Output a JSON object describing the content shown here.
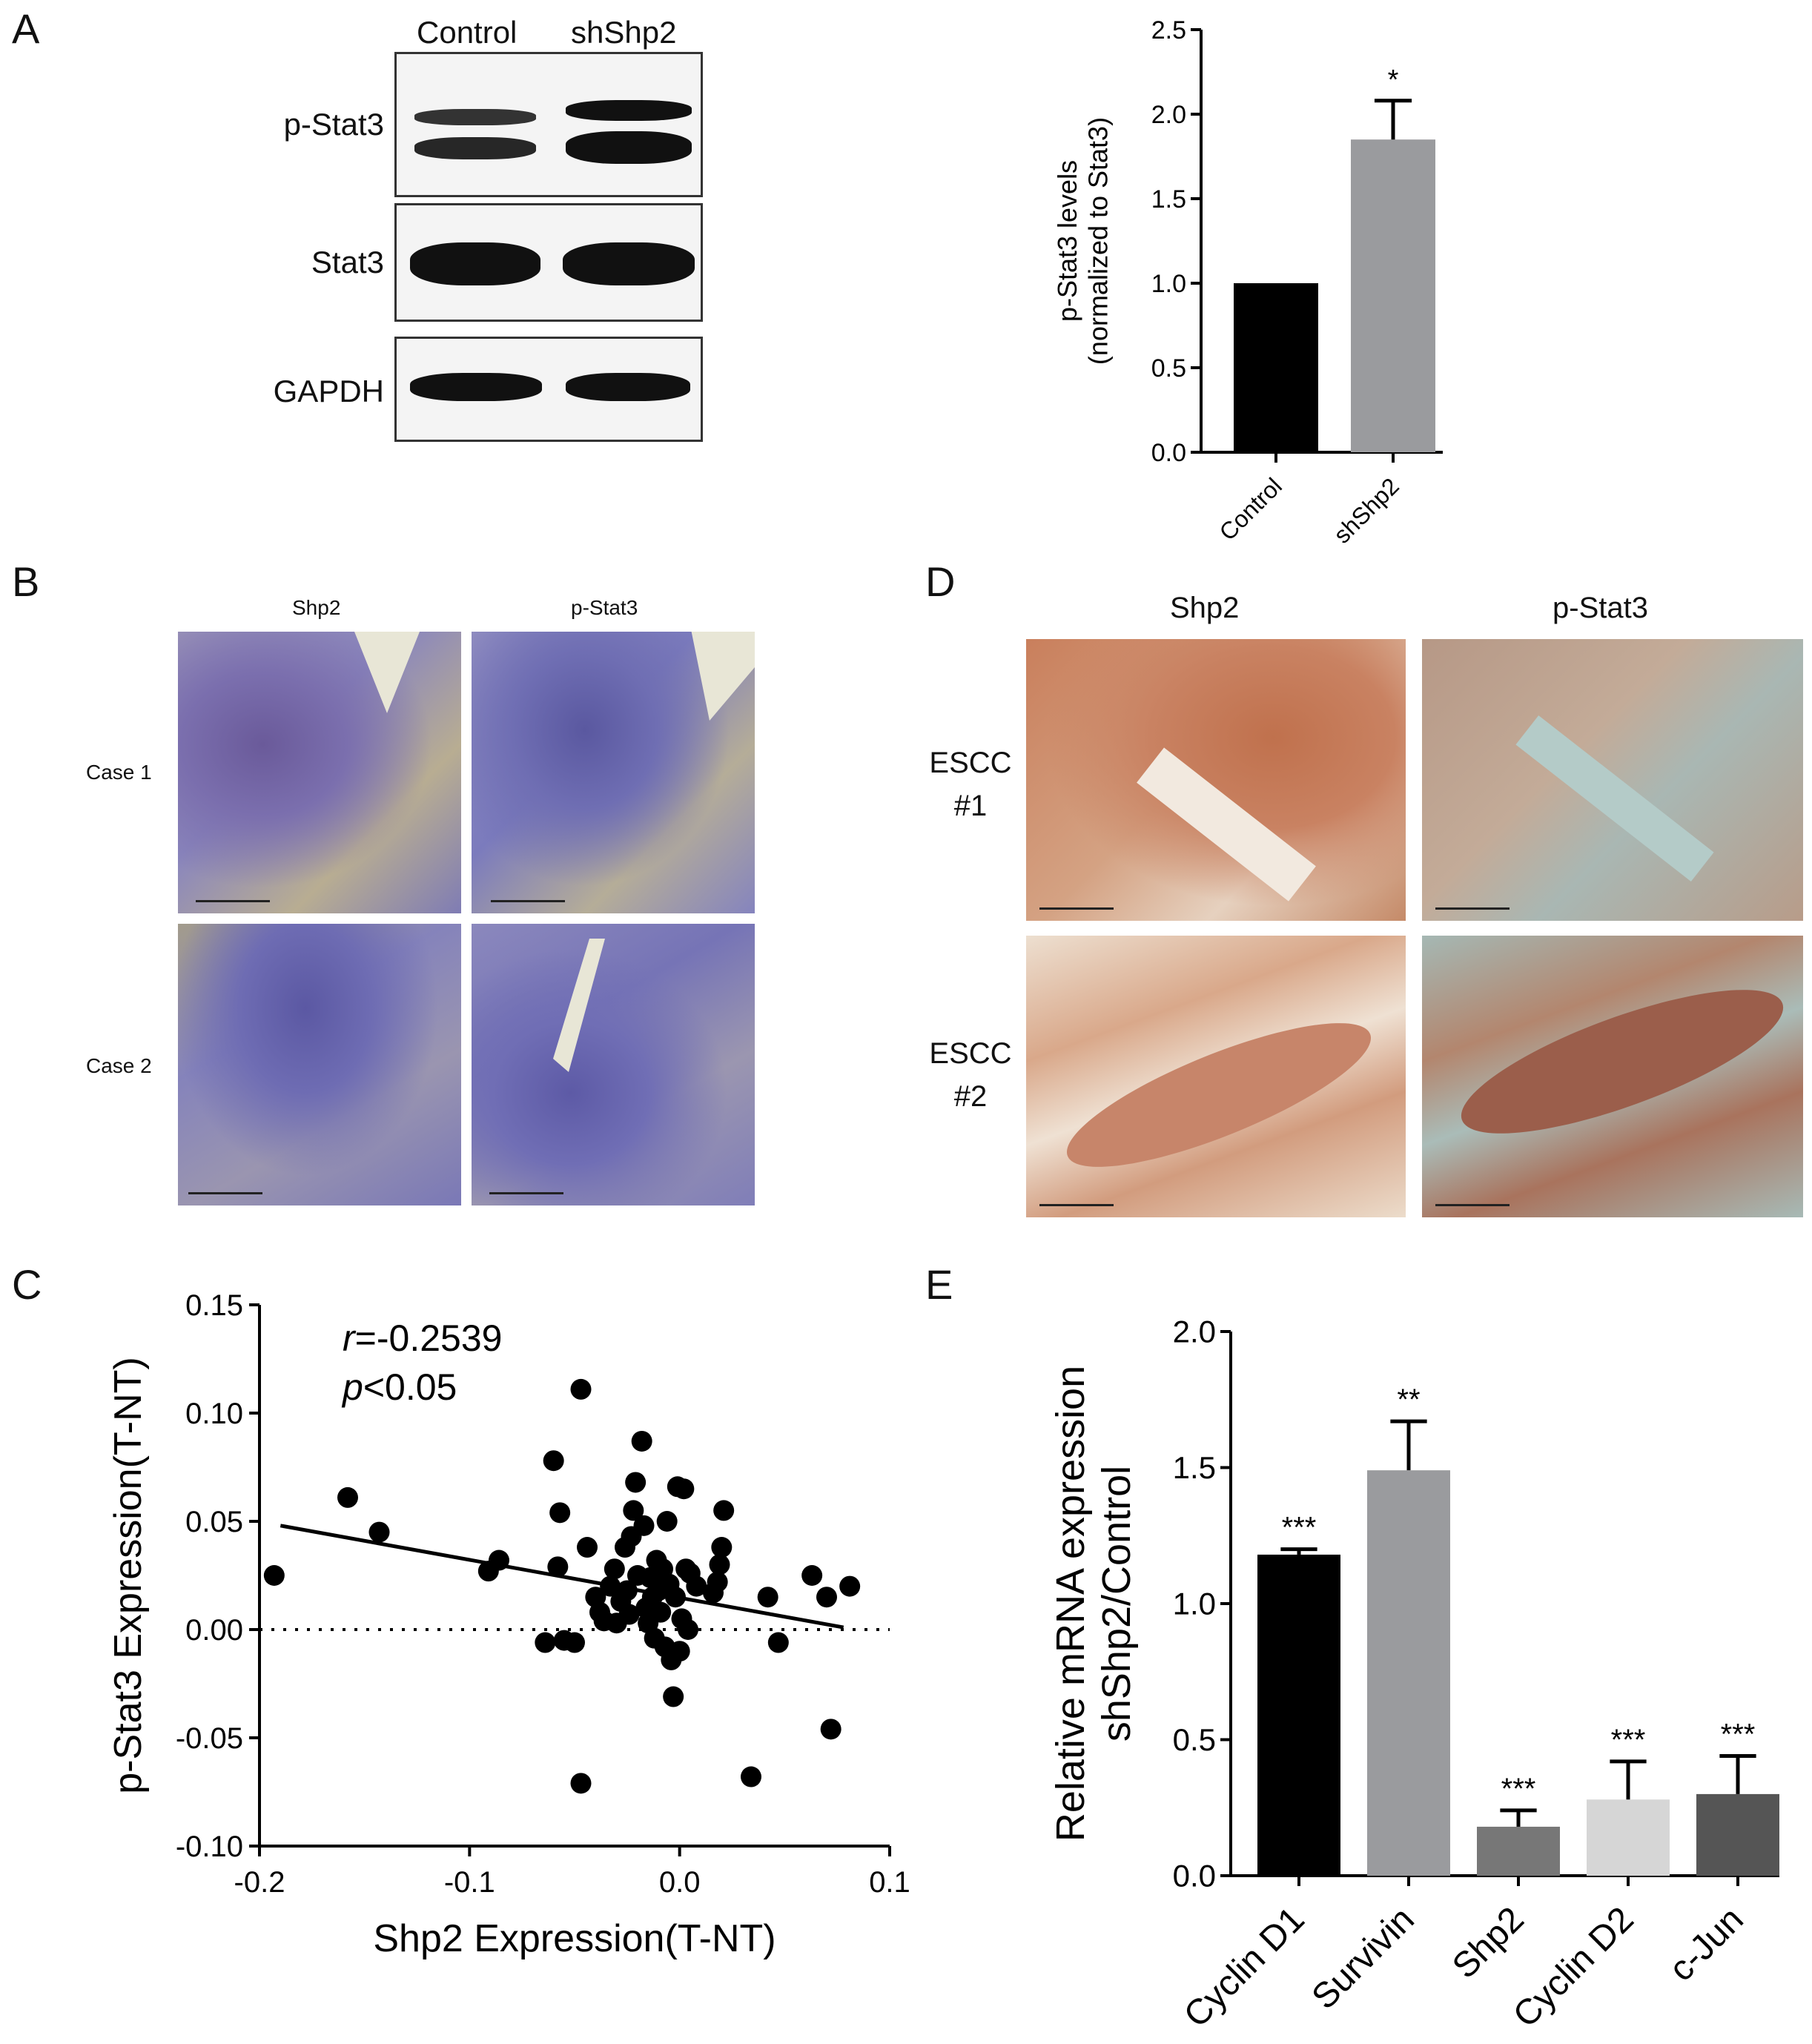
{
  "panels": {
    "A": "A",
    "B": "B",
    "C": "C",
    "D": "D",
    "E": "E"
  },
  "blot": {
    "lanes": [
      "Control",
      "shShp2"
    ],
    "rows": [
      "p-Stat3",
      "Stat3",
      "GAPDH"
    ]
  },
  "ihc_b": {
    "columns": [
      "Shp2",
      "p-Stat3"
    ],
    "rows": [
      "Case 1",
      "Case 2"
    ]
  },
  "ihc_d": {
    "columns": [
      "Shp2",
      "p-Stat3"
    ],
    "rows": [
      [
        "ESCC",
        "#1"
      ],
      [
        "ESCC",
        "#2"
      ]
    ]
  },
  "chart_data": [
    {
      "panel": "A",
      "type": "bar",
      "categories": [
        "Control",
        "shShp2"
      ],
      "values": [
        1.0,
        1.85
      ],
      "errors": [
        0,
        0.23
      ],
      "colors": [
        "#000000",
        "#9a9b9e"
      ],
      "significance": [
        "",
        "*"
      ],
      "ylabel": [
        "p-Stat3 levels",
        "(normalized to Stat3)"
      ],
      "ylim": [
        0,
        2.5
      ],
      "yticks": [
        "0.0",
        "0.5",
        "1.0",
        "1.5",
        "2.0",
        "2.5"
      ]
    },
    {
      "panel": "C",
      "type": "scatter",
      "xlabel": "Shp2 Expression(T-NT)",
      "ylabel": "p-Stat3 Expression(T-NT)",
      "xlim": [
        -0.2,
        0.1
      ],
      "ylim": [
        -0.1,
        0.15
      ],
      "xticks": [
        "-0.2",
        "-0.1",
        "0.0",
        "0.1"
      ],
      "yticks": [
        "-0.10",
        "-0.05",
        "0.00",
        "0.05",
        "0.10",
        "0.15"
      ],
      "annotation": {
        "r_symbol": "r",
        "r_value": "=-0.2539",
        "p_symbol": "p",
        "p_value": "<0.05"
      },
      "fit_line": {
        "x1": -0.19,
        "y1": 0.048,
        "x2": 0.078,
        "y2": 0.001
      },
      "zero_line": true,
      "points": [
        [
          -0.193,
          0.025
        ],
        [
          -0.158,
          0.061
        ],
        [
          -0.143,
          0.045
        ],
        [
          -0.091,
          0.027
        ],
        [
          -0.086,
          0.032
        ],
        [
          -0.06,
          0.078
        ],
        [
          -0.057,
          0.054
        ],
        [
          -0.058,
          0.029
        ],
        [
          -0.047,
          0.111
        ],
        [
          -0.044,
          0.038
        ],
        [
          -0.055,
          -0.005
        ],
        [
          -0.064,
          -0.006
        ],
        [
          -0.05,
          -0.006
        ],
        [
          -0.047,
          -0.071
        ],
        [
          -0.04,
          0.015
        ],
        [
          -0.038,
          0.008
        ],
        [
          -0.036,
          0.004
        ],
        [
          -0.033,
          0.02
        ],
        [
          -0.031,
          0.028
        ],
        [
          -0.03,
          0.003
        ],
        [
          -0.028,
          0.013
        ],
        [
          -0.026,
          0.038
        ],
        [
          -0.025,
          0.018
        ],
        [
          -0.024,
          0.007
        ],
        [
          -0.023,
          0.043
        ],
        [
          -0.022,
          0.055
        ],
        [
          -0.021,
          0.068
        ],
        [
          -0.02,
          0.025
        ],
        [
          -0.018,
          0.087
        ],
        [
          -0.017,
          0.048
        ],
        [
          -0.016,
          0.01
        ],
        [
          -0.015,
          0.003
        ],
        [
          -0.014,
          0.024
        ],
        [
          -0.013,
          0.015
        ],
        [
          -0.012,
          -0.004
        ],
        [
          -0.011,
          0.032
        ],
        [
          -0.01,
          0.018
        ],
        [
          -0.009,
          0.008
        ],
        [
          -0.008,
          0.028
        ],
        [
          -0.007,
          -0.008
        ],
        [
          -0.006,
          0.05
        ],
        [
          -0.005,
          0.021
        ],
        [
          -0.004,
          -0.014
        ],
        [
          -0.003,
          -0.031
        ],
        [
          -0.002,
          0.015
        ],
        [
          -0.001,
          0.066
        ],
        [
          0.0,
          -0.01
        ],
        [
          0.001,
          0.005
        ],
        [
          0.002,
          0.065
        ],
        [
          0.003,
          0.028
        ],
        [
          0.004,
          0.0
        ],
        [
          0.005,
          0.026
        ],
        [
          0.008,
          0.02
        ],
        [
          0.016,
          0.017
        ],
        [
          0.018,
          0.022
        ],
        [
          0.019,
          0.03
        ],
        [
          0.02,
          0.038
        ],
        [
          0.021,
          0.055
        ],
        [
          0.034,
          -0.068
        ],
        [
          0.042,
          0.015
        ],
        [
          0.047,
          -0.006
        ],
        [
          0.063,
          0.025
        ],
        [
          0.07,
          0.015
        ],
        [
          0.072,
          -0.046
        ],
        [
          0.081,
          0.02
        ]
      ]
    },
    {
      "panel": "E",
      "type": "bar",
      "categories": [
        "Cyclin D1",
        "Survivin",
        "Shp2",
        "Cyclin D2",
        "c-Jun"
      ],
      "values": [
        1.18,
        1.49,
        0.18,
        0.28,
        0.3
      ],
      "errors": [
        0.02,
        0.18,
        0.06,
        0.14,
        0.14
      ],
      "colors": [
        "#000000",
        "#9a9b9e",
        "#777777",
        "#d6d6d6",
        "#555555"
      ],
      "significance": [
        "***",
        "**",
        "***",
        "***",
        "***"
      ],
      "ylabel": [
        "Relative mRNA expression",
        "shShp2/Control"
      ],
      "ylim": [
        0,
        2.0
      ],
      "yticks": [
        "0.0",
        "0.5",
        "1.0",
        "1.5",
        "2.0"
      ]
    }
  ]
}
